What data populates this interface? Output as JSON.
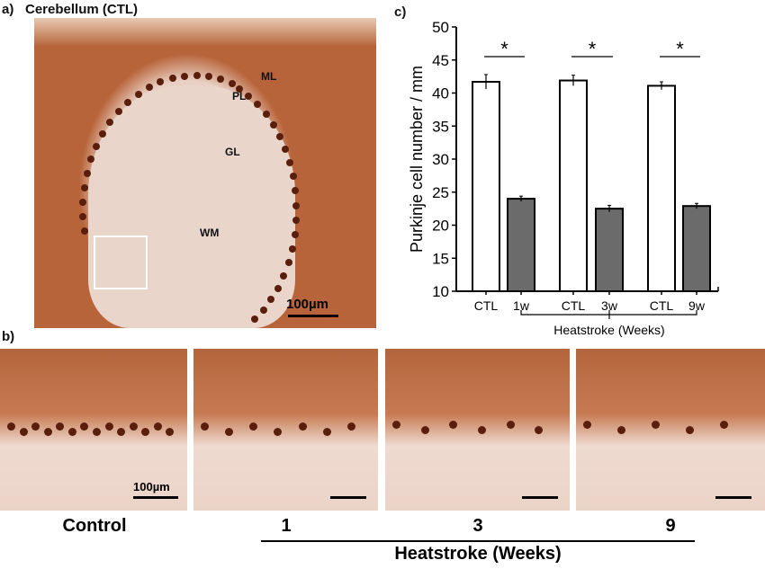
{
  "panel_a": {
    "label": "a)",
    "title": "Cerebellum (CTL)",
    "annotations": [
      "ML",
      "PL",
      "GL",
      "WM"
    ],
    "scale": "100µm"
  },
  "panel_b": {
    "label": "b)",
    "scale": "100µm",
    "captions": [
      "Control",
      "1",
      "3",
      "9"
    ],
    "group_label": "Heatstroke (Weeks)"
  },
  "panel_c": {
    "label": "c)"
  },
  "chart_data": {
    "type": "bar",
    "categories": [
      "CTL",
      "1w",
      "CTL",
      "3w",
      "CTL",
      "9w"
    ],
    "values": [
      41.7,
      24.0,
      41.9,
      22.5,
      41.1,
      22.9
    ],
    "errors": [
      1.1,
      0.4,
      0.8,
      0.5,
      0.6,
      0.4
    ],
    "colors": [
      "#ffffff",
      "#6b6b6b",
      "#ffffff",
      "#6b6b6b",
      "#ffffff",
      "#6b6b6b"
    ],
    "ylabel": "Purkinje cell number / mm",
    "xlabel": "Heatstroke (Weeks)",
    "ylim": [
      10,
      50
    ],
    "yticks": [
      10,
      15,
      20,
      25,
      30,
      35,
      40,
      45,
      50
    ],
    "significance": [
      "*",
      "*",
      "*"
    ],
    "grid": false
  }
}
